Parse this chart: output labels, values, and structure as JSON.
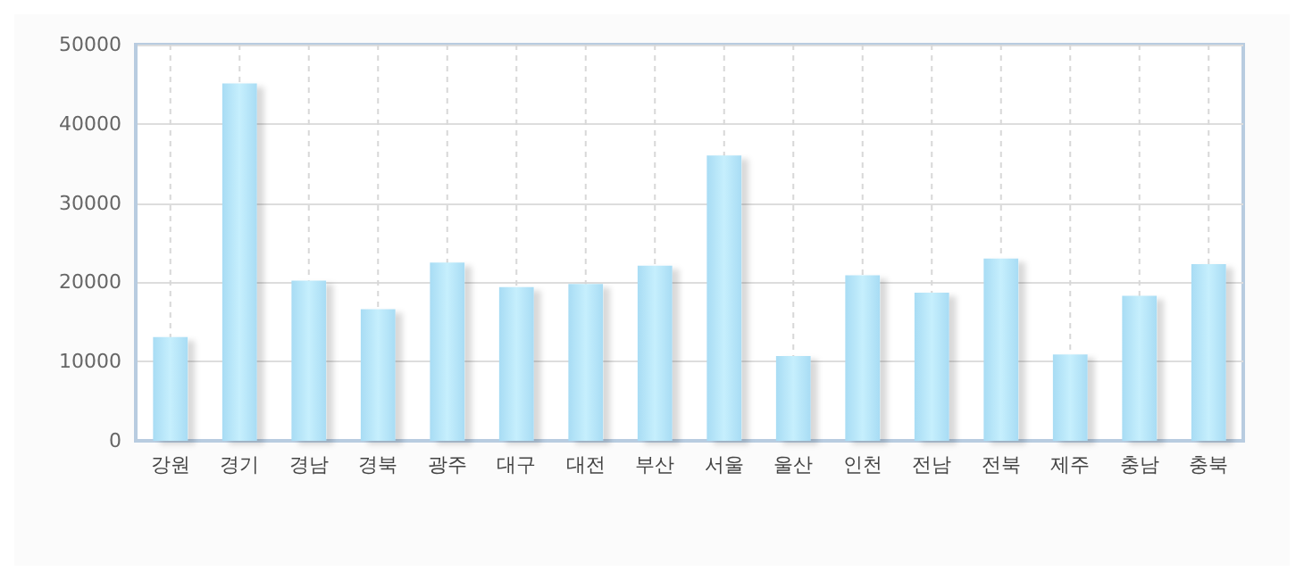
{
  "chart_data": {
    "type": "bar",
    "categories": [
      "강원",
      "경기",
      "경남",
      "경북",
      "광주",
      "대구",
      "대전",
      "부산",
      "서울",
      "울산",
      "인천",
      "전남",
      "전북",
      "제주",
      "충남",
      "충북"
    ],
    "series": [
      {
        "color": "#a8dcf4",
        "values": [
          13100,
          45100,
          20200,
          16600,
          22500,
          19400,
          19800,
          22100,
          36000,
          10700,
          20900,
          18700,
          23000,
          10900,
          18300,
          22300
        ]
      }
    ],
    "ylim": [
      0,
      50000
    ],
    "yticks": [
      0,
      10000,
      20000,
      30000,
      40000,
      50000
    ],
    "grid": true
  }
}
